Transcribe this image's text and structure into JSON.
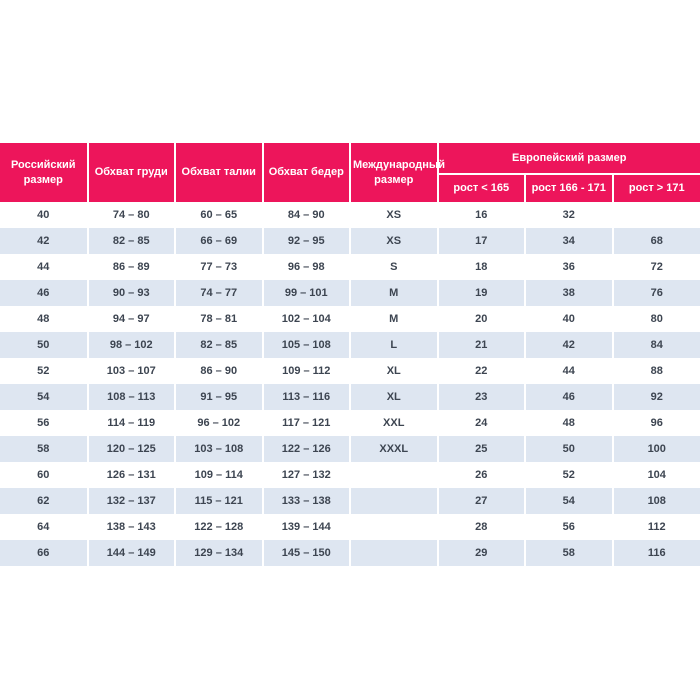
{
  "table": {
    "headers": {
      "russian_size": "Российский размер",
      "chest": "Обхват груди",
      "waist": "Обхват талии",
      "hips": "Обхват бедер",
      "international_size": "Международный размер",
      "european_size": "Европейский размер",
      "height_lt": "рост < 165",
      "height_mid": "рост 166 - 171",
      "height_gt": "рост > 171"
    },
    "rows": [
      [
        "40",
        "74 – 80",
        "60 – 65",
        "84 – 90",
        "XS",
        "16",
        "32",
        ""
      ],
      [
        "42",
        "82 – 85",
        "66 – 69",
        "92 – 95",
        "XS",
        "17",
        "34",
        "68"
      ],
      [
        "44",
        "86 – 89",
        "77 – 73",
        "96 – 98",
        "S",
        "18",
        "36",
        "72"
      ],
      [
        "46",
        "90 – 93",
        "74 – 77",
        "99 – 101",
        "M",
        "19",
        "38",
        "76"
      ],
      [
        "48",
        "94 – 97",
        "78 – 81",
        "102 – 104",
        "M",
        "20",
        "40",
        "80"
      ],
      [
        "50",
        "98 – 102",
        "82 – 85",
        "105 – 108",
        "L",
        "21",
        "42",
        "84"
      ],
      [
        "52",
        "103 – 107",
        "86 – 90",
        "109 – 112",
        "XL",
        "22",
        "44",
        "88"
      ],
      [
        "54",
        "108 – 113",
        "91 – 95",
        "113 – 116",
        "XL",
        "23",
        "46",
        "92"
      ],
      [
        "56",
        "114 – 119",
        "96 – 102",
        "117 – 121",
        "XXL",
        "24",
        "48",
        "96"
      ],
      [
        "58",
        "120 – 125",
        "103 – 108",
        "122 – 126",
        "XXXL",
        "25",
        "50",
        "100"
      ],
      [
        "60",
        "126 – 131",
        "109 – 114",
        "127 – 132",
        "",
        "26",
        "52",
        "104"
      ],
      [
        "62",
        "132 – 137",
        "115 – 121",
        "133 – 138",
        "",
        "27",
        "54",
        "108"
      ],
      [
        "64",
        "138 – 143",
        "122 – 128",
        "139 – 144",
        "",
        "28",
        "56",
        "112"
      ],
      [
        "66",
        "144 – 149",
        "129 – 134",
        "145 – 150",
        "",
        "29",
        "58",
        "116"
      ]
    ],
    "cell_names": [
      "cell-russian-size",
      "cell-chest",
      "cell-waist",
      "cell-hips",
      "cell-international-size",
      "cell-height-lt-165",
      "cell-height-166-171",
      "cell-height-gt-171"
    ]
  },
  "colors": {
    "header_bg": "#ED155B",
    "row_alt_bg": "#DEE6F1",
    "cell_text": "#3D4551"
  }
}
